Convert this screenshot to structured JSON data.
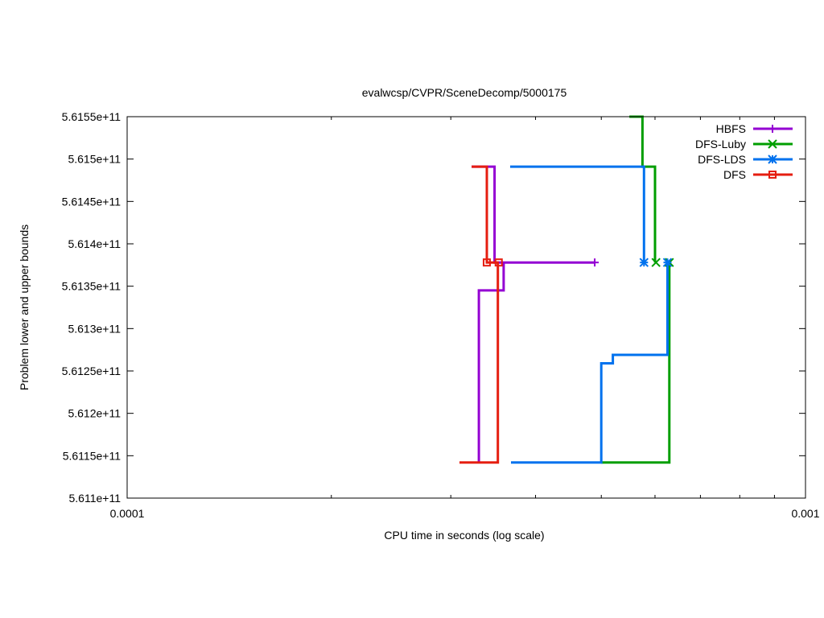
{
  "chart_data": {
    "type": "line",
    "title": "evalwcsp/CVPR/SceneDecomp/5000175",
    "xlabel": "CPU time in seconds (log scale)",
    "ylabel": "Problem lower and upper bounds",
    "x_scale": "log",
    "xlim": [
      0.0001,
      0.001
    ],
    "ylim": [
      561100000000,
      561550000000
    ],
    "x_ticks": [
      {
        "value": 0.0001,
        "label": "0.0001"
      },
      {
        "value": 0.001,
        "label": "0.001"
      }
    ],
    "y_ticks": [
      {
        "value": 561100000000,
        "label": "5.611e+11"
      },
      {
        "value": 561150000000,
        "label": "5.6115e+11"
      },
      {
        "value": 561200000000,
        "label": "5.612e+11"
      },
      {
        "value": 561250000000,
        "label": "5.6125e+11"
      },
      {
        "value": 561300000000,
        "label": "5.613e+11"
      },
      {
        "value": 561350000000,
        "label": "5.6135e+11"
      },
      {
        "value": 561400000000,
        "label": "5.614e+11"
      },
      {
        "value": 561450000000,
        "label": "5.6145e+11"
      },
      {
        "value": 561500000000,
        "label": "5.615e+11"
      },
      {
        "value": 561550000000,
        "label": "5.6155e+11"
      }
    ],
    "legend_position": "top-right",
    "grid": false,
    "series": [
      {
        "name": "HBFS",
        "color": "#9400d3",
        "marker": "plus",
        "paths": [
          [
            [
              0.000322,
              561491000000
            ],
            [
              0.000348,
              561491000000
            ],
            [
              0.000348,
              561378000000
            ],
            [
              0.000489,
              561378000000
            ]
          ],
          [
            [
              0.00033,
              561142000000
            ],
            [
              0.00033,
              561345000000
            ],
            [
              0.000359,
              561345000000
            ],
            [
              0.000359,
              561378000000
            ]
          ]
        ],
        "markers": [
          [
            0.000489,
            561378000000
          ]
        ]
      },
      {
        "name": "DFS-Luby",
        "color": "#009e00",
        "marker": "x",
        "paths": [
          [
            [
              0.00055,
              561550000000
            ],
            [
              0.000575,
              561550000000
            ],
            [
              0.000575,
              561491000000
            ],
            [
              0.0006,
              561491000000
            ],
            [
              0.0006,
              561378000000
            ]
          ],
          [
            [
              0.0005,
              561142000000
            ],
            [
              0.00063,
              561142000000
            ],
            [
              0.00063,
              561378000000
            ]
          ]
        ],
        "markers": [
          [
            0.000602,
            561378000000
          ],
          [
            0.00063,
            561378000000
          ]
        ]
      },
      {
        "name": "DFS-LDS",
        "color": "#0072ee",
        "marker": "star",
        "paths": [
          [
            [
              0.000367,
              561491000000
            ],
            [
              0.000578,
              561491000000
            ],
            [
              0.000578,
              561378000000
            ]
          ],
          [
            [
              0.000368,
              561142000000
            ],
            [
              0.0005,
              561142000000
            ],
            [
              0.0005,
              561259000000
            ],
            [
              0.00052,
              561259000000
            ],
            [
              0.00052,
              561269000000
            ],
            [
              0.000626,
              561269000000
            ],
            [
              0.000626,
              561378000000
            ]
          ]
        ],
        "markers": [
          [
            0.000578,
            561378000000
          ],
          [
            0.000626,
            561378000000
          ]
        ]
      },
      {
        "name": "DFS",
        "color": "#e51e10",
        "marker": "square",
        "paths": [
          [
            [
              0.000322,
              561491000000
            ],
            [
              0.000339,
              561491000000
            ],
            [
              0.000339,
              561378000000
            ],
            [
              0.000353,
              561378000000
            ]
          ],
          [
            [
              0.000309,
              561142000000
            ],
            [
              0.000352,
              561142000000
            ],
            [
              0.000352,
              561378000000
            ]
          ]
        ],
        "markers": [
          [
            0.000339,
            561378000000
          ],
          [
            0.000353,
            561378000000
          ]
        ]
      }
    ]
  }
}
